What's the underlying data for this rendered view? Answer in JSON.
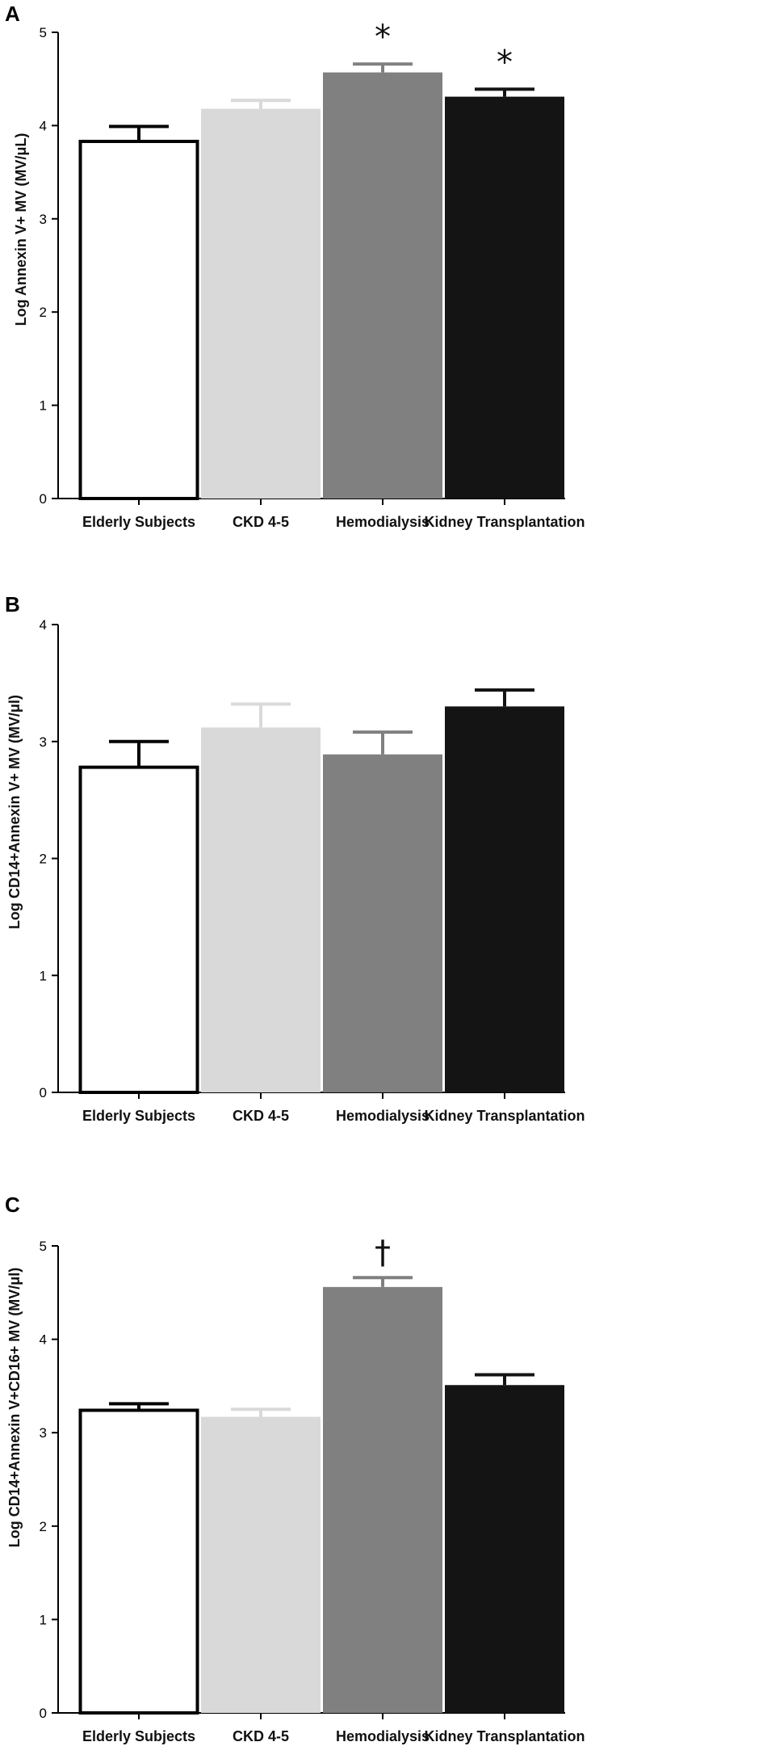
{
  "chart_data": [
    {
      "type": "bar",
      "panel": "A",
      "ylabel": "Log Annexin V+ MV  (MV/μL)",
      "ylim": [
        0,
        5
      ],
      "yticks": [
        0,
        1,
        2,
        3,
        4,
        5
      ],
      "categories": [
        "Elderly Subjects",
        "CKD 4-5",
        "Hemodialysis",
        "Kidney Transplantation"
      ],
      "values": [
        3.83,
        4.18,
        4.57,
        4.31
      ],
      "errors": [
        0.16,
        0.09,
        0.09,
        0.08
      ],
      "annotations": [
        "",
        "",
        "*",
        "*"
      ],
      "colors": [
        "#ffffff",
        "#d9d9d9",
        "#808080",
        "#141414"
      ]
    },
    {
      "type": "bar",
      "panel": "B",
      "ylabel": "Log CD14+Annexin V+ MV (MV/μl)",
      "ylim": [
        0,
        4
      ],
      "yticks": [
        0,
        1,
        2,
        3,
        4
      ],
      "categories": [
        "Elderly Subjects",
        "CKD 4-5",
        "Hemodialysis",
        "Kidney Transplantation"
      ],
      "values": [
        2.78,
        3.12,
        2.89,
        3.3
      ],
      "errors": [
        0.22,
        0.2,
        0.19,
        0.14
      ],
      "annotations": [
        "",
        "",
        "",
        ""
      ],
      "colors": [
        "#ffffff",
        "#d9d9d9",
        "#808080",
        "#141414"
      ]
    },
    {
      "type": "bar",
      "panel": "C",
      "ylabel": "Log CD14+Annexin V+CD16+ MV (MV/μl)",
      "ylim": [
        0,
        5
      ],
      "yticks": [
        0,
        1,
        2,
        3,
        4,
        5
      ],
      "categories": [
        "Elderly Subjects",
        "CKD 4-5",
        "Hemodialysis",
        "Kidney Transplantation"
      ],
      "values": [
        3.24,
        3.17,
        4.56,
        3.51
      ],
      "errors": [
        0.07,
        0.08,
        0.1,
        0.11
      ],
      "annotations": [
        "",
        "",
        "†",
        ""
      ],
      "colors": [
        "#ffffff",
        "#d9d9d9",
        "#808080",
        "#141414"
      ]
    }
  ]
}
